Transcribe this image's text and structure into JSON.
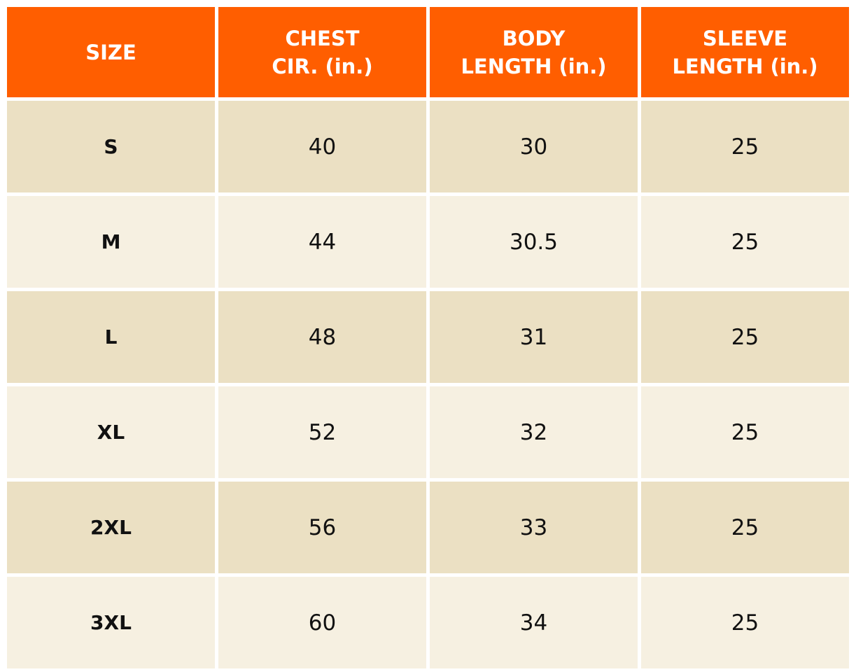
{
  "colors": {
    "header": "#FF5E00",
    "row_odd": "#EBE0C3",
    "row_even": "#F6F0E1"
  },
  "headers": [
    "SIZE",
    "CHEST\nCIR. (in.)",
    "BODY\nLENGTH (in.)",
    "SLEEVE\nLENGTH (in.)"
  ],
  "rows": [
    [
      "S",
      "40",
      "30",
      "25"
    ],
    [
      "M",
      "44",
      "30.5",
      "25"
    ],
    [
      "L",
      "48",
      "31",
      "25"
    ],
    [
      "XL",
      "52",
      "32",
      "25"
    ],
    [
      "2XL",
      "56",
      "33",
      "25"
    ],
    [
      "3XL",
      "60",
      "34",
      "25"
    ]
  ]
}
